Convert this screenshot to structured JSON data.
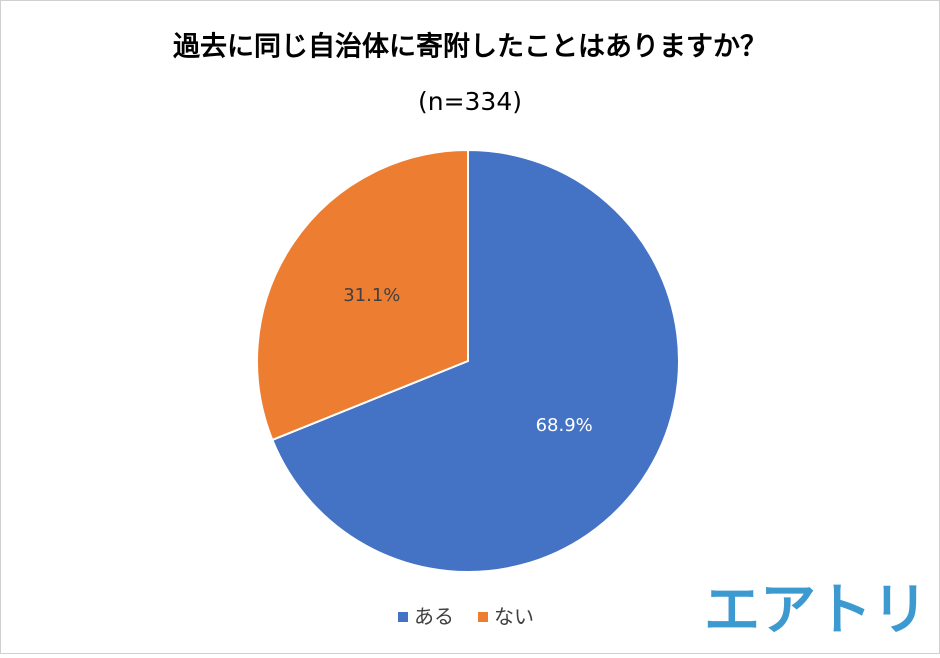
{
  "chart_data": {
    "type": "pie",
    "title": "過去に同じ自治体に寄附したことはありますか？",
    "subtitle": "(n=334)",
    "categories": [
      "ある",
      "ない"
    ],
    "values": [
      68.9,
      31.1
    ],
    "value_labels": [
      "68.9%",
      "31.1%"
    ],
    "colors": [
      "#4472c4",
      "#ed7d31"
    ],
    "label_colors": [
      "#ffffff",
      "#404040"
    ],
    "legend": "bottom"
  },
  "logo": "エアトリ"
}
